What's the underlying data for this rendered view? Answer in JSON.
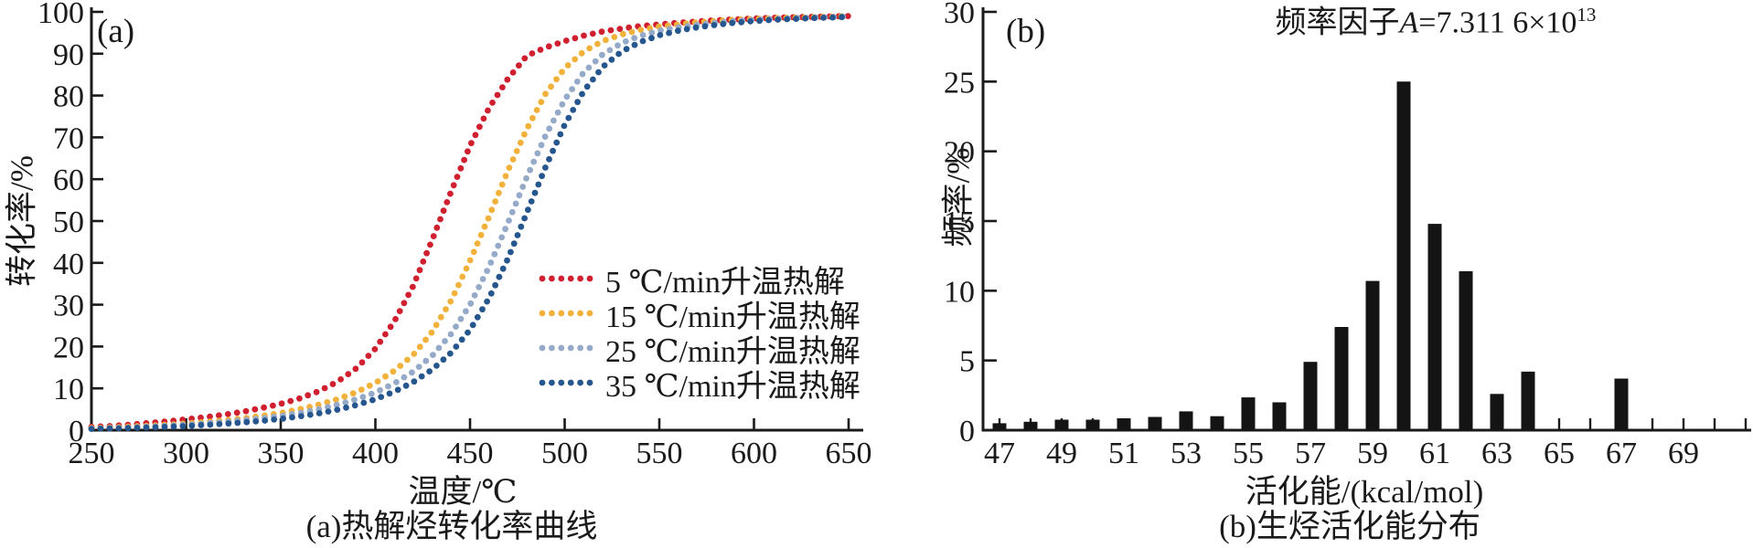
{
  "figure": {
    "background": "#ffffff",
    "ink_color": "#1a1a1a"
  },
  "chart_data": [
    {
      "type": "scatter",
      "panel_label": "(a)",
      "xlabel": "温度/℃",
      "ylabel": "转化率/%",
      "caption": "(a)热解烃转化率曲线",
      "xlim": [
        250,
        656
      ],
      "ylim": [
        0,
        100
      ],
      "grid": false,
      "marker": "dot",
      "legend_position": "right-center-inside",
      "x_ticks": [
        250,
        300,
        350,
        400,
        450,
        500,
        550,
        600,
        650
      ],
      "y_ticks": [
        0,
        10,
        20,
        30,
        40,
        50,
        60,
        70,
        80,
        90,
        100
      ],
      "x": [
        250,
        260,
        270,
        280,
        290,
        300,
        310,
        320,
        330,
        340,
        350,
        360,
        370,
        380,
        390,
        400,
        410,
        420,
        430,
        440,
        450,
        460,
        470,
        480,
        490,
        500,
        510,
        520,
        530,
        540,
        550,
        560,
        570,
        580,
        590,
        600,
        610,
        620,
        630,
        640,
        650
      ],
      "series": [
        {
          "name": "5 ℃/min升温热解",
          "color": "#d01f2e",
          "values": [
            0.8,
            1.0,
            1.3,
            1.7,
            2.1,
            2.6,
            3.1,
            3.7,
            4.4,
            5.3,
            6.3,
            7.6,
            9.3,
            11.6,
            14.8,
            19.5,
            26,
            34.5,
            45.5,
            57,
            68,
            77,
            84,
            89.5,
            91.5,
            93,
            94.3,
            95.3,
            96,
            96.6,
            97,
            97.4,
            97.7,
            98,
            98.2,
            98.4,
            98.6,
            98.7,
            98.8,
            98.9,
            99
          ]
        },
        {
          "name": "15 ℃/min升温热解",
          "color": "#f2b13a",
          "values": [
            0.5,
            0.65,
            0.85,
            1.05,
            1.3,
            1.6,
            1.95,
            2.35,
            2.8,
            3.4,
            4.1,
            5.0,
            6.1,
            7.4,
            9.1,
            11.3,
            14.2,
            18,
            23.5,
            31,
            40.5,
            51,
            62,
            72,
            80.5,
            86.5,
            90.5,
            93,
            94.6,
            95.7,
            96.5,
            97,
            97.5,
            97.8,
            98.1,
            98.3,
            98.5,
            98.6,
            98.7,
            98.85,
            99
          ]
        },
        {
          "name": "25 ℃/min升温热解",
          "color": "#95aac8",
          "values": [
            0.4,
            0.5,
            0.65,
            0.85,
            1.05,
            1.3,
            1.6,
            1.95,
            2.35,
            2.8,
            3.4,
            4.1,
            5.0,
            6.1,
            7.4,
            9.0,
            11.2,
            14,
            17.8,
            23,
            30,
            39,
            49.5,
            60.5,
            70.5,
            79,
            85.5,
            89.8,
            92.5,
            94.3,
            95.5,
            96.3,
            96.9,
            97.4,
            97.8,
            98.1,
            98.3,
            98.5,
            98.6,
            98.75,
            98.9
          ]
        },
        {
          "name": "35 ℃/min升温热解",
          "color": "#26568e",
          "values": [
            0.3,
            0.4,
            0.5,
            0.65,
            0.8,
            1.0,
            1.25,
            1.5,
            1.85,
            2.2,
            2.7,
            3.3,
            4.0,
            4.9,
            6.0,
            7.4,
            9.2,
            11.5,
            14.5,
            18.5,
            24,
            31.5,
            41,
            52,
            63,
            73,
            81,
            86.8,
            90.5,
            92.8,
            94.4,
            95.5,
            96.3,
            96.9,
            97.4,
            97.8,
            98.1,
            98.3,
            98.5,
            98.65,
            98.8
          ]
        }
      ]
    },
    {
      "type": "bar",
      "panel_label": "(b)",
      "annotation": {
        "prefix": "频率因子",
        "symbol": "A",
        "value": "=7.311 6×10",
        "exponent": "13"
      },
      "xlabel": "活化能/(kcal/mol)",
      "ylabel": "频率/%",
      "caption": "(b)生烃活化能分布",
      "xlim": [
        46.4,
        71.3
      ],
      "ylim": [
        0,
        30
      ],
      "grid": false,
      "bar_color": "#141414",
      "y_ticks": [
        0,
        5,
        10,
        15,
        20,
        25,
        30
      ],
      "x_tick_labels": [
        47,
        49,
        51,
        53,
        55,
        57,
        59,
        61,
        63,
        65,
        67,
        69
      ],
      "x_minor_ticks": [
        47,
        48,
        49,
        50,
        51,
        52,
        53,
        54,
        55,
        56,
        57,
        58,
        59,
        60,
        61,
        62,
        63,
        64,
        65,
        66,
        67,
        68,
        69,
        70,
        71
      ],
      "categories": [
        47,
        48,
        49,
        50,
        51,
        52,
        53,
        54,
        55,
        56,
        57,
        58,
        59,
        60,
        61,
        62,
        63,
        64,
        65,
        66,
        67,
        68,
        69,
        70
      ],
      "values": [
        0.5,
        0.6,
        0.75,
        0.75,
        0.85,
        0.95,
        1.35,
        1.0,
        2.35,
        2.0,
        4.9,
        7.4,
        10.7,
        25.0,
        14.8,
        11.4,
        2.6,
        4.2,
        0,
        0,
        3.7,
        0,
        0,
        0
      ]
    }
  ]
}
